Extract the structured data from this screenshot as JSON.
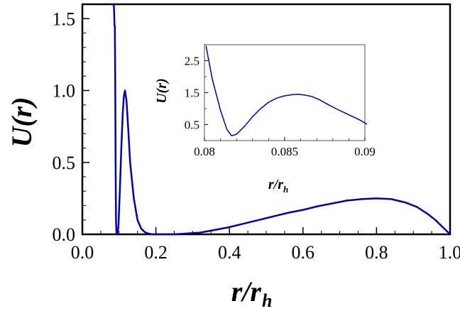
{
  "chart_data": [
    {
      "type": "line",
      "xlabel": "r/r",
      "xlabel_sub": "h",
      "ylabel": "U(r)",
      "xlim": [
        0.0,
        1.0
      ],
      "ylim": [
        0.0,
        1.6
      ],
      "grid": false,
      "xticks": [
        "0.0",
        "0.2",
        "0.4",
        "0.6",
        "0.8",
        "1.0"
      ],
      "yticks": [
        "0.0",
        "0.5",
        "1.0",
        "1.5"
      ],
      "series": [
        {
          "color": "#0000a8",
          "x": [
            0.0806,
            0.081,
            0.0815,
            0.082,
            0.083,
            0.084,
            0.085,
            0.0855,
            0.0865,
            0.0875,
            0.0885,
            0.0895,
            0.0905,
            0.0915,
            0.093,
            0.095,
            0.098,
            0.102,
            0.106,
            0.11,
            0.113,
            0.116,
            0.12,
            0.125,
            0.13,
            0.14,
            0.15,
            0.16,
            0.17,
            0.18,
            0.19,
            0.2,
            0.22,
            0.25,
            0.28,
            0.32,
            0.36,
            0.4,
            0.44,
            0.48,
            0.52,
            0.56,
            0.6,
            0.64,
            0.68,
            0.72,
            0.76,
            0.8,
            0.84,
            0.88,
            0.91,
            0.94,
            0.96,
            0.98,
            0.99,
            1.0
          ],
          "y": [
            1.6,
            1.6,
            1.6,
            1.6,
            1.6,
            1.6,
            1.6,
            1.6,
            1.55,
            1.45,
            1.45,
            1.0,
            0.45,
            0.1,
            0.0,
            0.0,
            0.05,
            0.3,
            0.6,
            0.85,
            0.96,
            1.0,
            0.93,
            0.72,
            0.5,
            0.25,
            0.1,
            0.04,
            0.015,
            0.005,
            0.0,
            0.0,
            0.0,
            0.0,
            0.005,
            0.012,
            0.03,
            0.05,
            0.075,
            0.1,
            0.125,
            0.15,
            0.17,
            0.195,
            0.215,
            0.235,
            0.245,
            0.25,
            0.245,
            0.22,
            0.19,
            0.14,
            0.1,
            0.05,
            0.025,
            0.0
          ]
        }
      ]
    },
    {
      "type": "line",
      "inset": true,
      "xlabel": "r/r",
      "xlabel_sub": "h",
      "ylabel": "U(r)",
      "xlim": [
        0.08,
        0.09
      ],
      "ylim": [
        0.0,
        3.0
      ],
      "grid": false,
      "xticks": [
        "0.08",
        "0.085",
        "0.09"
      ],
      "yticks": [
        "2.5",
        "1.5",
        "0.5"
      ],
      "series": [
        {
          "color": "#0000a8",
          "x": [
            0.0801,
            0.0805,
            0.081,
            0.0814,
            0.0817,
            0.082,
            0.0825,
            0.083,
            0.0835,
            0.084,
            0.0845,
            0.085,
            0.0855,
            0.0858,
            0.0862,
            0.0867,
            0.0872,
            0.0877,
            0.0882,
            0.0887,
            0.0892,
            0.0897,
            0.0901
          ],
          "y": [
            2.95,
            1.9,
            0.95,
            0.35,
            0.15,
            0.2,
            0.45,
            0.75,
            1.0,
            1.2,
            1.33,
            1.4,
            1.44,
            1.45,
            1.43,
            1.38,
            1.27,
            1.13,
            1.0,
            0.88,
            0.76,
            0.64,
            0.52
          ]
        }
      ]
    }
  ]
}
